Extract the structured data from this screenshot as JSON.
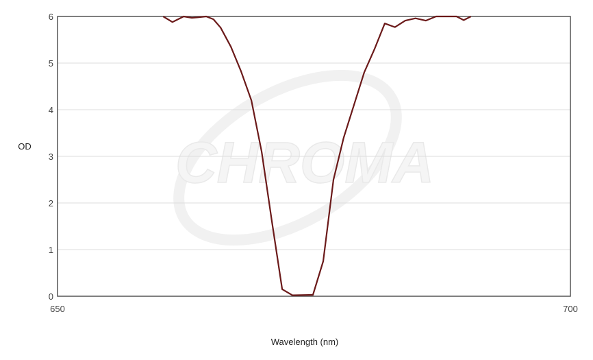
{
  "watermark": "CHROMA",
  "chart_data": {
    "type": "line",
    "xlabel": "Wavelength (nm)",
    "ylabel": "OD",
    "xlim": [
      650,
      700
    ],
    "ylim": [
      0,
      6
    ],
    "x_ticks": [
      "650",
      "700"
    ],
    "y_ticks": [
      "0",
      "1",
      "2",
      "3",
      "4",
      "5",
      "6"
    ],
    "grid": true,
    "series": [
      {
        "color": "#6b1a1a",
        "x": [
          660.3,
          661.2,
          662.3,
          663.1,
          663.6,
          664.5,
          665.2,
          665.9,
          666.9,
          667.9,
          668.9,
          669.9,
          670.9,
          671.9,
          672.9,
          674.9,
          675.9,
          676.9,
          677.9,
          678.9,
          679.9,
          680.9,
          681.9,
          682.9,
          683.9,
          684.9,
          685.9,
          686.9,
          687.6,
          688.9,
          689.6,
          690.3
        ],
        "y": [
          6.0,
          5.88,
          6.0,
          5.97,
          5.98,
          6.0,
          5.94,
          5.76,
          5.35,
          4.82,
          4.2,
          3.1,
          1.6,
          0.15,
          0.02,
          0.03,
          0.75,
          2.5,
          3.4,
          4.1,
          4.8,
          5.3,
          5.85,
          5.77,
          5.91,
          5.96,
          5.91,
          6.0,
          6.0,
          6.0,
          5.92,
          6.0
        ]
      }
    ]
  }
}
